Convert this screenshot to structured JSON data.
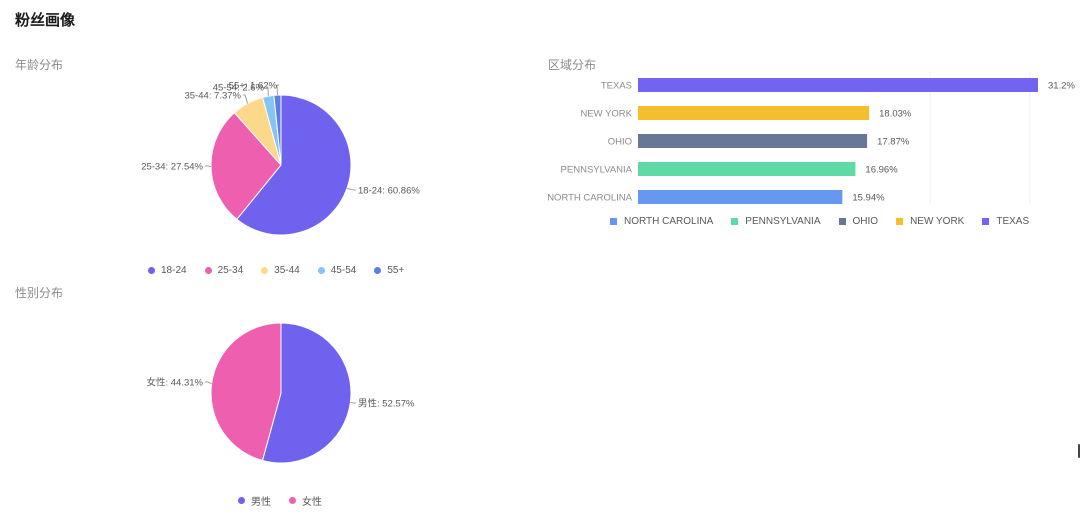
{
  "page": {
    "title": "粉丝画像"
  },
  "sections": {
    "age": "年龄分布",
    "region": "区域分布",
    "gender": "性别分布"
  },
  "chart_data": [
    {
      "id": "age",
      "type": "pie",
      "title": "年龄分布",
      "slices": [
        {
          "name": "18-24",
          "value": 60.86,
          "color": "#6e62ee"
        },
        {
          "name": "25-34",
          "value": 27.54,
          "color": "#ef5fb0"
        },
        {
          "name": "35-44",
          "value": 7.37,
          "color": "#fdd88a"
        },
        {
          "name": "45-54",
          "value": 2.6,
          "color": "#85c4f6"
        },
        {
          "name": "55+",
          "value": 1.62,
          "color": "#5b7ee5"
        }
      ],
      "legend": [
        "18-24",
        "25-34",
        "35-44",
        "45-54",
        "55+"
      ],
      "legend_position": "bottom"
    },
    {
      "id": "region",
      "type": "bar",
      "orientation": "horizontal",
      "title": "区域分布",
      "categories": [
        "TEXAS",
        "NEW YORK",
        "OHIO",
        "PENNSYLVANIA",
        "NORTH CAROLINA"
      ],
      "values": [
        31.2,
        18.03,
        17.87,
        16.96,
        15.94
      ],
      "value_labels": [
        "31.2%",
        "18.03%",
        "17.87%",
        "16.96%",
        "15.94%"
      ],
      "colors": [
        "#7263f0",
        "#f3bf2c",
        "#677795",
        "#5fd9a6",
        "#6698f2"
      ],
      "legend": [
        {
          "name": "NORTH CAROLINA",
          "color": "#6698f2"
        },
        {
          "name": "PENNSYLVANIA",
          "color": "#5fd9a6"
        },
        {
          "name": "OHIO",
          "color": "#677795"
        },
        {
          "name": "NEW YORK",
          "color": "#f3bf2c"
        },
        {
          "name": "TEXAS",
          "color": "#7263f0"
        }
      ],
      "xlim": [
        0,
        31.2
      ],
      "legend_position": "bottom"
    },
    {
      "id": "gender",
      "type": "pie",
      "title": "性别分布",
      "slices": [
        {
          "name": "男性",
          "value": 52.57,
          "color": "#6e62ee"
        },
        {
          "name": "女性",
          "value": 44.31,
          "color": "#ef5fb0"
        }
      ],
      "legend": [
        "男性",
        "女性"
      ],
      "legend_position": "bottom"
    }
  ]
}
